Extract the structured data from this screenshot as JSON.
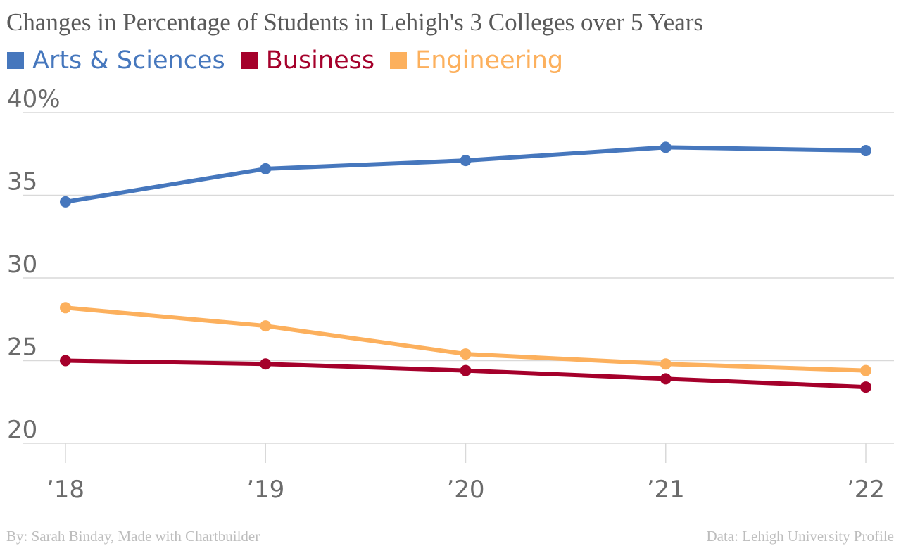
{
  "chart_data": {
    "type": "line",
    "title": "Changes in Percentage of Students in Lehigh's 3 Colleges over 5 Years",
    "categories": [
      "’18",
      "’19",
      "’20",
      "’21",
      "’22"
    ],
    "yticks": [
      "40%",
      "35",
      "30",
      "25",
      "20"
    ],
    "ytick_values": [
      40,
      35,
      30,
      25,
      20
    ],
    "ylim": [
      20,
      40
    ],
    "grid": true,
    "legend_position": "top-left",
    "series": [
      {
        "name": "Arts & Sciences",
        "color": "#4677bd",
        "values": [
          34.6,
          36.6,
          37.1,
          37.9,
          37.7
        ]
      },
      {
        "name": "Business",
        "color": "#a5002b",
        "values": [
          25.0,
          24.8,
          24.4,
          23.9,
          23.4
        ]
      },
      {
        "name": "Engineering",
        "color": "#fcb05d",
        "values": [
          28.2,
          27.1,
          25.4,
          24.8,
          24.4
        ]
      }
    ]
  },
  "footer": {
    "credit": "By: Sarah Binday, Made with Chartbuilder",
    "source": "Data: Lehigh University Profile"
  }
}
